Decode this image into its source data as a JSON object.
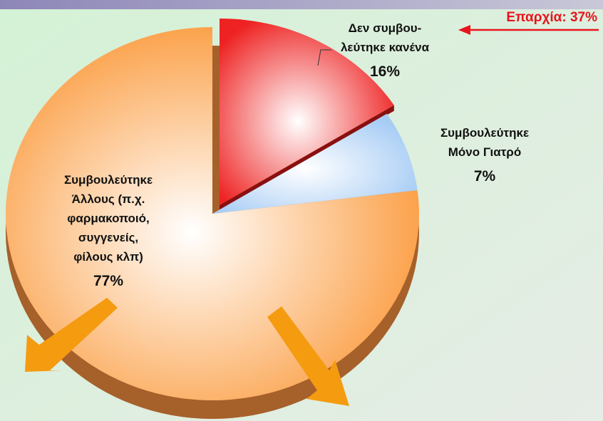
{
  "chart_data": {
    "type": "pie",
    "categories": [
      "Δεν συμβου-\nλεύτηκε κανένα",
      "Συμβουλεύτηκε\nΜόνο Γιατρό",
      "Συμβουλεύτηκε\nΆλλους (π.χ.\nφαρμακοποιό,\nσυγγενείς,\nφίλους κλπ)"
    ],
    "values": [
      16,
      7,
      77
    ],
    "value_labels": [
      "16%",
      "7%",
      "77%"
    ],
    "colors": [
      "#ee2222",
      "#a8cdf5",
      "#fb9a3c"
    ],
    "annotation": "Επαρχία: 37%"
  }
}
